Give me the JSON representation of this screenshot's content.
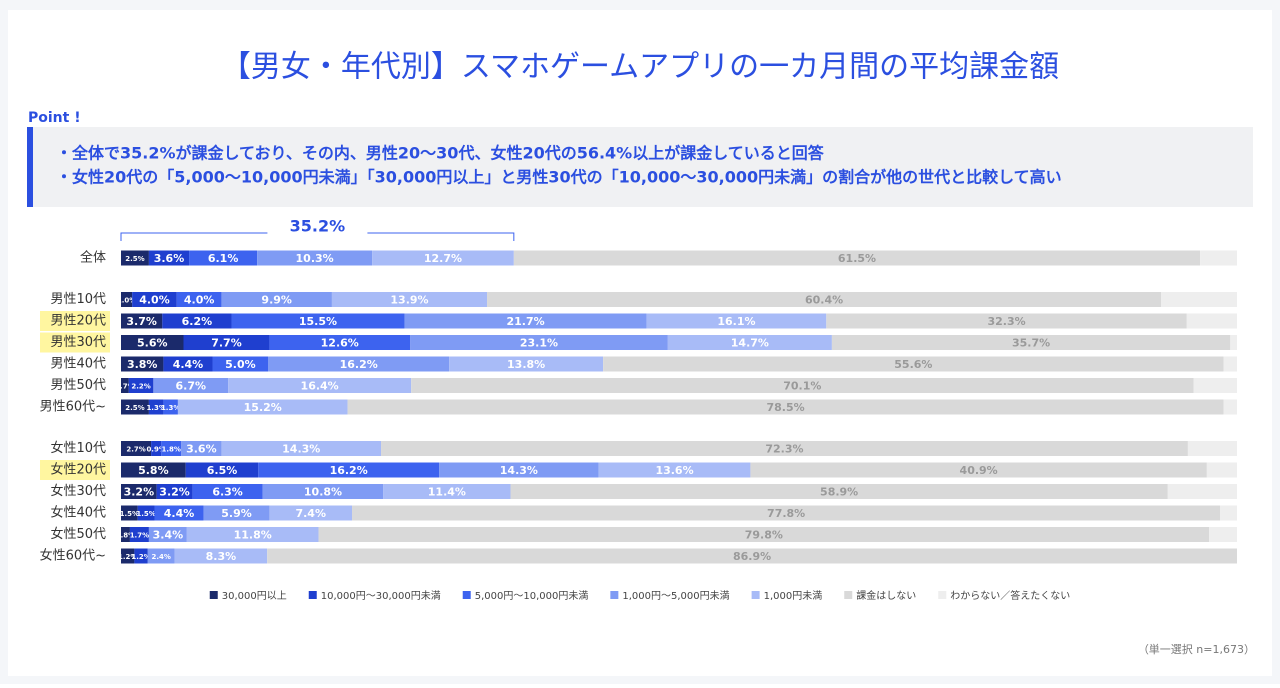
{
  "chart_data": {
    "type": "stacked-bar-horizontal",
    "title": "【男女・年代別】スマホゲームアプリの一カ月間の平均課金額",
    "point_heading": "Point !",
    "points": [
      "・全体で35.2%が課金しており、その内、男性20～30代、女性20代の56.4%以上が課金していると回答",
      "・女性20代の「5,000～10,000円未満」「30,000円以上」と男性30代の「10,000～30,000円未満」の割合が他の世代と比較して高い"
    ],
    "annotation": {
      "value": 35.2,
      "label": "35.2%"
    },
    "note": "（単一選択 n=1,673）",
    "categories": [
      "全体",
      "男性10代",
      "男性20代",
      "男性30代",
      "男性40代",
      "男性50代",
      "男性60代~",
      "女性10代",
      "女性20代",
      "女性30代",
      "女性40代",
      "女性50代",
      "女性60代~"
    ],
    "highlight": [
      2,
      3,
      8
    ],
    "xlim": [
      0,
      100
    ],
    "series": [
      {
        "name": "30,000円以上",
        "color": "#1b2a6b",
        "values": [
          2.5,
          1.0,
          3.7,
          5.6,
          3.8,
          0.7,
          2.5,
          2.7,
          5.8,
          3.2,
          1.5,
          0.8,
          1.2
        ],
        "value_labels": [
          "2.5%",
          "1.0%",
          "3.7%",
          "5.6%",
          "3.8%",
          "0.7%",
          "2.5%",
          "2.7%",
          "5.8%",
          "3.2%",
          "1.5%",
          "0.8%",
          "1.2%"
        ]
      },
      {
        "name": "10,000円～30,000円未満",
        "color": "#1f3fcf",
        "values": [
          3.6,
          4.0,
          6.2,
          7.7,
          4.4,
          2.2,
          1.3,
          0.9,
          6.5,
          3.2,
          1.5,
          1.7,
          1.2
        ],
        "value_labels": [
          "3.6%",
          "4.0%",
          "6.2%",
          "7.7%",
          "4.4%",
          "2.2%",
          "1.3%",
          "0.9%",
          "6.5%",
          "3.2%",
          "1.5%",
          "1.7%",
          "1.2%"
        ]
      },
      {
        "name": "5,000円～10,000円未満",
        "color": "#3d63ef",
        "values": [
          6.1,
          4.0,
          15.5,
          12.6,
          5.0,
          0,
          1.3,
          1.8,
          16.2,
          6.3,
          4.4,
          0,
          0
        ],
        "value_labels": [
          "6.1%",
          "4.0%",
          "15.5%",
          "12.6%",
          "5.0%",
          null,
          "1.3%",
          "1.8%",
          "16.2%",
          "6.3%",
          "4.4%",
          null,
          null
        ]
      },
      {
        "name": "1,000円～5,000円未満",
        "color": "#7f9bf4",
        "values": [
          10.3,
          9.9,
          21.7,
          23.1,
          16.2,
          6.7,
          0,
          3.6,
          14.3,
          10.8,
          5.9,
          3.4,
          2.4
        ],
        "value_labels": [
          "10.3%",
          "9.9%",
          "21.7%",
          "23.1%",
          "16.2%",
          "6.7%",
          null,
          "3.6%",
          "14.3%",
          "10.8%",
          "5.9%",
          "3.4%",
          "2.4%"
        ]
      },
      {
        "name": "1,000円未満",
        "color": "#a8bbf7",
        "values": [
          12.7,
          13.9,
          16.1,
          14.7,
          13.8,
          16.4,
          15.2,
          14.3,
          13.6,
          11.4,
          7.4,
          11.8,
          8.3
        ],
        "value_labels": [
          "12.7%",
          "13.9%",
          "16.1%",
          "14.7%",
          "13.8%",
          "16.4%",
          "15.2%",
          "14.3%",
          "13.6%",
          "11.4%",
          "7.4%",
          "11.8%",
          "8.3%"
        ]
      },
      {
        "name": "課金はしない",
        "color": "#d9d9d9",
        "values": [
          61.5,
          60.4,
          32.3,
          35.7,
          55.6,
          70.1,
          78.5,
          72.3,
          40.9,
          58.9,
          77.8,
          79.8,
          86.9
        ],
        "value_labels": [
          "61.5%",
          "60.4%",
          "32.3%",
          "35.7%",
          "55.6%",
          "70.1%",
          "78.5%",
          "72.3%",
          "40.9%",
          "58.9%",
          "77.8%",
          "79.8%",
          "86.9%"
        ]
      },
      {
        "name": "わからない／答えたくない",
        "color": "#eeeeee",
        "values": [
          3.3,
          6.8,
          4.5,
          0.6,
          1.2,
          3.9,
          1.2,
          4.4,
          2.7,
          6.2,
          1.5,
          2.5,
          0
        ]
      }
    ]
  }
}
